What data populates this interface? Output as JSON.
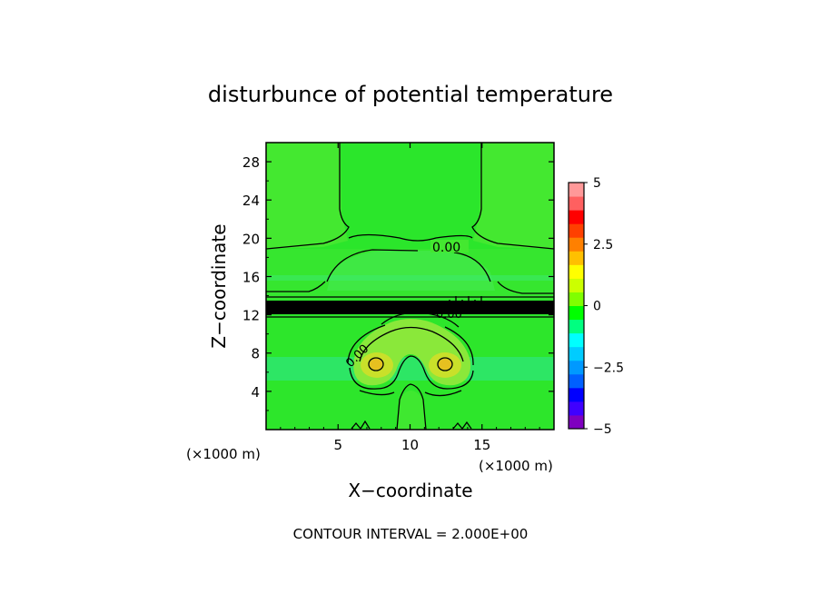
{
  "chart_data": {
    "type": "heatmap",
    "title": "disturbunce of potential temperature",
    "xlabel": "X−coordinate",
    "ylabel": "Z−coordinate",
    "x_unit": "(×1000 m)",
    "y_unit": "(×1000 m)",
    "xlim": [
      0,
      20
    ],
    "ylim": [
      0,
      30
    ],
    "x_ticks": [
      "5",
      "10",
      "15"
    ],
    "y_ticks": [
      "4",
      "8",
      "12",
      "16",
      "20",
      "24",
      "28"
    ],
    "contour_label": "0.00",
    "contour_interval_text": "CONTOUR INTERVAL = 2.000E+00",
    "colorbar": {
      "ticks": [
        "5",
        "2.5",
        "0",
        "−2.5",
        "−5"
      ],
      "range": [
        -5,
        5
      ],
      "colors": [
        "#7f00bf",
        "#3f00ff",
        "#0000ff",
        "#0060ff",
        "#0099ff",
        "#00ccff",
        "#00ffff",
        "#00ff80",
        "#00ff00",
        "#80ff00",
        "#ccff00",
        "#ffff00",
        "#ffc000",
        "#ff8000",
        "#ff4000",
        "#ff0000",
        "#ff6060",
        "#ff9999"
      ]
    },
    "background_value_color": "#26e62b"
  }
}
